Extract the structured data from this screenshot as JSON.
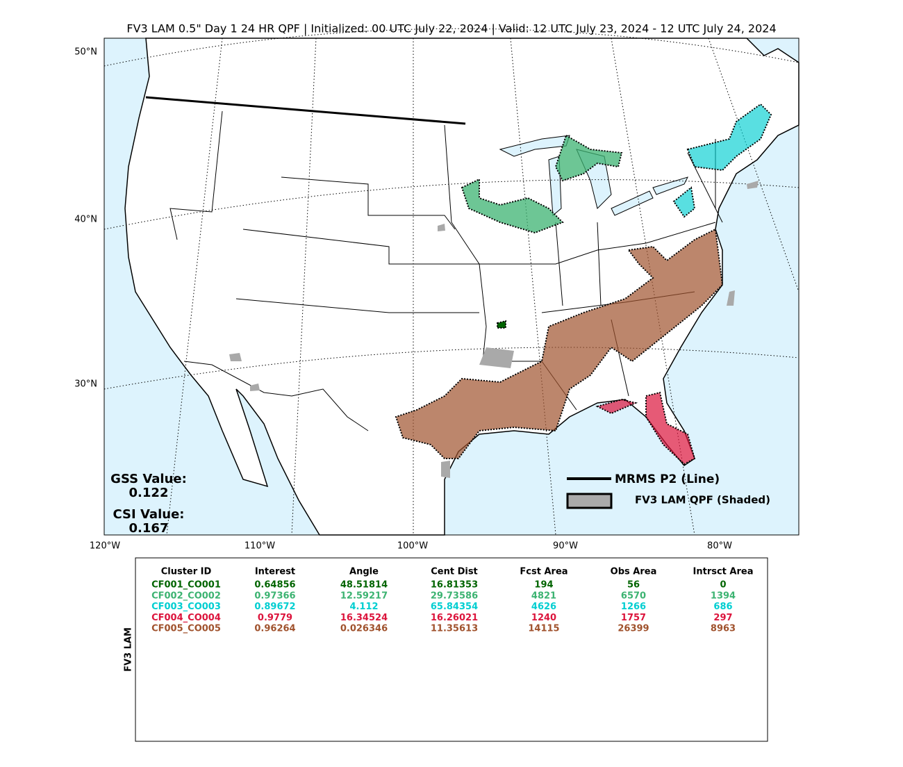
{
  "title": "FV3 LAM 0.5\" Day 1 24 HR QPF | Initialized: 00 UTC July 22, 2024 | Valid: 12 UTC July 23, 2024 - 12 UTC July 24, 2024",
  "map": {
    "lat_labels": [
      "50°N",
      "40°N",
      "30°N"
    ],
    "lon_labels": [
      "120°W",
      "110°W",
      "100°W",
      "90°W",
      "80°W"
    ],
    "gss_label": "GSS Value:",
    "gss_value": "0.122",
    "csi_label": "CSI Value:",
    "csi_value": "0.167",
    "legend": {
      "line": "MRMS P2 (Line)",
      "shaded": "FV3 LAM QPF (Shaded)"
    }
  },
  "table": {
    "side_label": "FV3 LAM",
    "columns": [
      "Cluster ID",
      "Interest",
      "Angle",
      "Cent Dist",
      "Fcst Area",
      "Obs Area",
      "Intrsct Area"
    ],
    "rows": [
      {
        "color": "#006400",
        "cells": [
          "CF001_CO001",
          "0.64856",
          "48.51814",
          "16.81353",
          "194",
          "56",
          "0"
        ]
      },
      {
        "color": "#3cb371",
        "cells": [
          "CF002_CO002",
          "0.97366",
          "12.59217",
          "29.73586",
          "4821",
          "6570",
          "1394"
        ]
      },
      {
        "color": "#00ced1",
        "cells": [
          "CF003_CO003",
          "0.89672",
          "4.112",
          "65.84354",
          "4626",
          "1266",
          "686"
        ]
      },
      {
        "color": "#dc143c",
        "cells": [
          "CF004_CO004",
          "0.9779",
          "16.34524",
          "16.26021",
          "1240",
          "1757",
          "297"
        ]
      },
      {
        "color": "#a0522d",
        "cells": [
          "CF005_CO005",
          "0.96264",
          "0.026346",
          "11.35613",
          "14115",
          "26399",
          "8963"
        ]
      }
    ]
  }
}
